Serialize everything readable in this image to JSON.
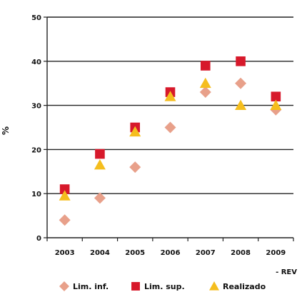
{
  "chart_data": {
    "type": "scatter",
    "categories": [
      "2003",
      "2004",
      "2005",
      "2006",
      "2007",
      "2008",
      "2009"
    ],
    "ylabel": "%",
    "ylim": [
      0,
      50
    ],
    "yticks": [
      "0",
      "10",
      "20",
      "30",
      "40",
      "50"
    ],
    "note": "- REV",
    "grid": true,
    "legend_position": "bottom",
    "series": [
      {
        "name": "Lim. inf.",
        "marker": "diamond",
        "color": "#e8a08a",
        "values": [
          4,
          9,
          16,
          25,
          33,
          35,
          29
        ]
      },
      {
        "name": "Lim. sup.",
        "marker": "square",
        "color": "#d7192b",
        "values": [
          11,
          19,
          25,
          33,
          39,
          40,
          32
        ]
      },
      {
        "name": "Realizado",
        "marker": "triangle",
        "color": "#f5be1e",
        "values": [
          9.5,
          16.5,
          24,
          32,
          35,
          30,
          30
        ]
      }
    ]
  }
}
